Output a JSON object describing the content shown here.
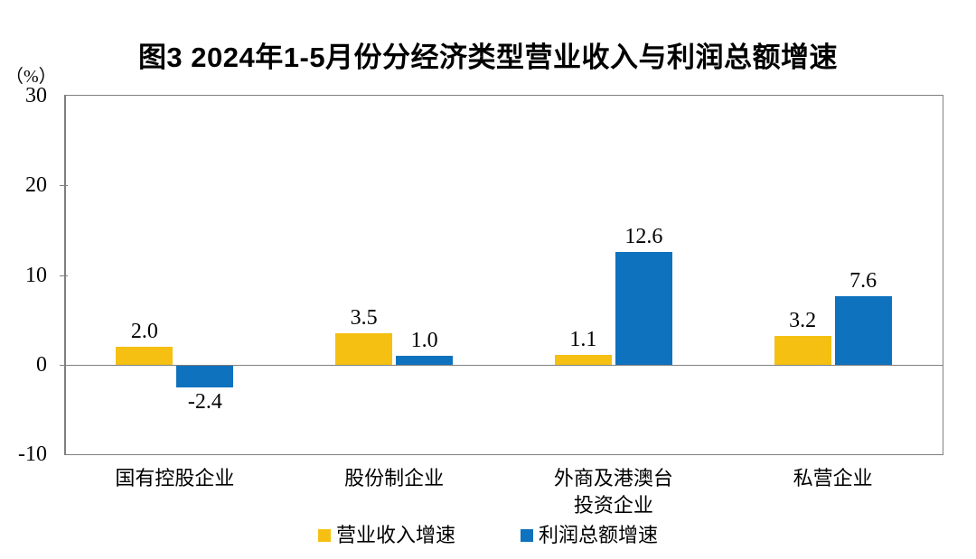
{
  "chart": {
    "title": "图3 2024年1-5月份分经济类型营业收入与利润总额增速",
    "y_axis_unit": "（%）"
  },
  "chart_data": {
    "type": "bar",
    "title": "图3 2024年1-5月份分经济类型营业收入与利润总额增速",
    "categories": [
      "国有控股企业",
      "股份制企业",
      "外商及港澳台\n投资企业",
      "私营企业"
    ],
    "series": [
      {
        "name": "营业收入增速",
        "color": "#F6C013",
        "values": [
          2.0,
          3.5,
          1.1,
          3.2
        ],
        "labels": [
          "2.0",
          "3.5",
          "1.1",
          "3.2"
        ]
      },
      {
        "name": "利润总额增速",
        "color": "#0E72BE",
        "values": [
          -2.4,
          1.0,
          12.6,
          7.6
        ],
        "labels": [
          "-2.4",
          "1.0",
          "12.6",
          "7.6"
        ]
      }
    ],
    "xlabel": "",
    "ylabel": "（%）",
    "ylim": [
      -10,
      30
    ],
    "yticks": [
      30,
      20,
      10,
      0,
      -10
    ],
    "grid": false,
    "legend_position": "bottom",
    "axis_color": "#7f7f7f"
  }
}
